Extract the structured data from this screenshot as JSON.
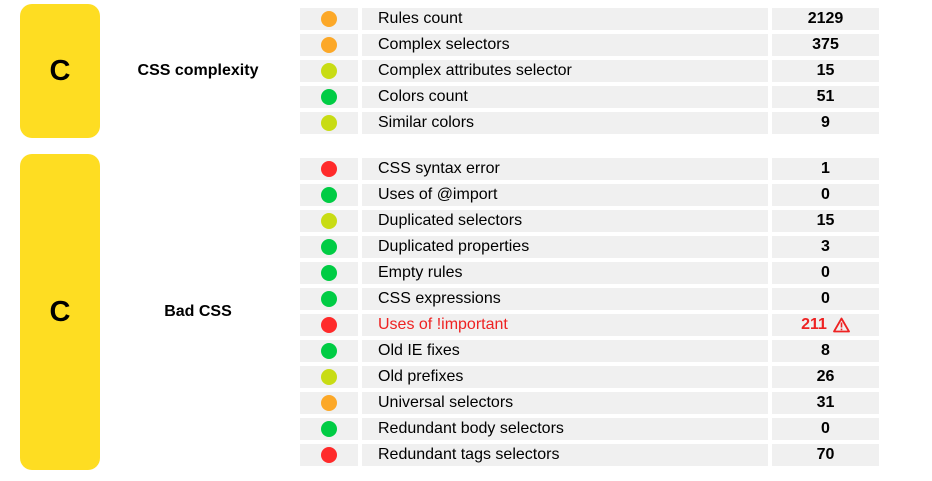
{
  "colors": {
    "grade_bg": "#fedd22",
    "green": "#00cc44",
    "lime": "#c8dc14",
    "orange": "#fca828",
    "red": "#ff2a2a",
    "row_bg": "#f0f0f0",
    "warning_text": "#ee2222"
  },
  "sections": [
    {
      "grade": "C",
      "title": "CSS complexity",
      "rows": [
        {
          "status": "orange",
          "label": "Rules count",
          "value": "2129"
        },
        {
          "status": "orange",
          "label": "Complex selectors",
          "value": "375"
        },
        {
          "status": "lime",
          "label": "Complex attributes selector",
          "value": "15"
        },
        {
          "status": "green",
          "label": "Colors count",
          "value": "51"
        },
        {
          "status": "lime",
          "label": "Similar colors",
          "value": "9"
        }
      ]
    },
    {
      "grade": "C",
      "title": "Bad CSS",
      "rows": [
        {
          "status": "red",
          "label": "CSS syntax error",
          "value": "1"
        },
        {
          "status": "green",
          "label": "Uses of @import",
          "value": "0"
        },
        {
          "status": "lime",
          "label": "Duplicated selectors",
          "value": "15"
        },
        {
          "status": "green",
          "label": "Duplicated properties",
          "value": "3"
        },
        {
          "status": "green",
          "label": "Empty rules",
          "value": "0"
        },
        {
          "status": "green",
          "label": "CSS expressions",
          "value": "0"
        },
        {
          "status": "red",
          "label": "Uses of !important",
          "value": "211",
          "warning": true,
          "warning_icon": "warning-triangle-icon"
        },
        {
          "status": "green",
          "label": "Old IE fixes",
          "value": "8"
        },
        {
          "status": "lime",
          "label": "Old prefixes",
          "value": "26"
        },
        {
          "status": "orange",
          "label": "Universal selectors",
          "value": "31"
        },
        {
          "status": "green",
          "label": "Redundant body selectors",
          "value": "0"
        },
        {
          "status": "red",
          "label": "Redundant tags selectors",
          "value": "70"
        }
      ]
    }
  ]
}
